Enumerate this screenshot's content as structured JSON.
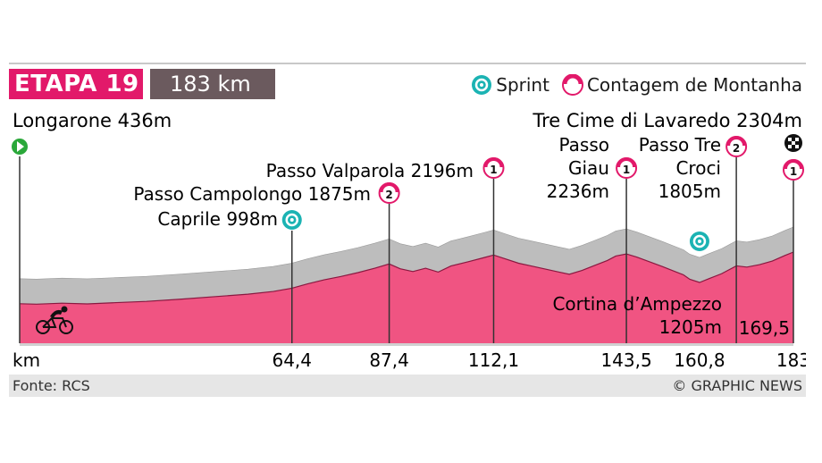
{
  "header": {
    "stage": "ETAPA 19",
    "distance": "183 km",
    "legend": [
      {
        "icon": "sprint-icon",
        "label": "Sprint"
      },
      {
        "icon": "climb-icon",
        "label": "Contagem de Montanha"
      }
    ]
  },
  "footer": {
    "source": "Fonte: RCS",
    "credit": "© GRAPHIC NEWS"
  },
  "colors": {
    "stage": "#e2196a",
    "profile": "#f05482",
    "distance": "#6b5a5e",
    "sprint": "#1bb3b3"
  },
  "chart_data": {
    "type": "area",
    "xlabel": "km",
    "xlim": [
      0,
      183
    ],
    "xticks": [
      {
        "km": 64.4,
        "label": "64,4"
      },
      {
        "km": 87.4,
        "label": "87,4"
      },
      {
        "km": 112.1,
        "label": "112,1"
      },
      {
        "km": 143.5,
        "label": "143,5"
      },
      {
        "km": 160.8,
        "label": "160,8"
      },
      {
        "km": 183,
        "label": "183"
      }
    ],
    "profile": [
      [
        0,
        436
      ],
      [
        4,
        420
      ],
      [
        10,
        455
      ],
      [
        16,
        430
      ],
      [
        22,
        470
      ],
      [
        30,
        520
      ],
      [
        38,
        600
      ],
      [
        46,
        690
      ],
      [
        54,
        780
      ],
      [
        60,
        880
      ],
      [
        64.4,
        998
      ],
      [
        68,
        1150
      ],
      [
        72,
        1300
      ],
      [
        76,
        1420
      ],
      [
        80,
        1560
      ],
      [
        84,
        1720
      ],
      [
        87.4,
        1875
      ],
      [
        90,
        1700
      ],
      [
        93,
        1600
      ],
      [
        96,
        1720
      ],
      [
        99,
        1580
      ],
      [
        102,
        1800
      ],
      [
        106,
        1950
      ],
      [
        110,
        2110
      ],
      [
        112.1,
        2196
      ],
      [
        115,
        2050
      ],
      [
        118,
        1900
      ],
      [
        121,
        1800
      ],
      [
        124,
        1700
      ],
      [
        127,
        1600
      ],
      [
        130,
        1500
      ],
      [
        133,
        1640
      ],
      [
        136,
        1820
      ],
      [
        139,
        2000
      ],
      [
        141,
        2160
      ],
      [
        143.5,
        2236
      ],
      [
        146,
        2120
      ],
      [
        149,
        1950
      ],
      [
        152,
        1780
      ],
      [
        155,
        1600
      ],
      [
        157,
        1480
      ],
      [
        158.5,
        1320
      ],
      [
        160.8,
        1205
      ],
      [
        163,
        1340
      ],
      [
        166,
        1520
      ],
      [
        169.5,
        1805
      ],
      [
        172,
        1760
      ],
      [
        175,
        1850
      ],
      [
        178,
        1980
      ],
      [
        181,
        2180
      ],
      [
        183,
        2304
      ]
    ],
    "annotations": [
      {
        "label": "Longarone 436m",
        "km": 0,
        "type": "start"
      },
      {
        "label": "Caprile 998m",
        "km": 64.4,
        "type": "sprint"
      },
      {
        "label": "Passo Campolongo 1875m",
        "km": 87.4,
        "type": "climb",
        "category": "2"
      },
      {
        "label": "Passo Valparola 2196m",
        "km": 112.1,
        "type": "climb",
        "category": "1"
      },
      {
        "label": "Passo Giau 2236m",
        "km": 143.5,
        "type": "climb",
        "category": "1"
      },
      {
        "label": "Passo Tre Croci 1805m",
        "km": 169.5,
        "type": "climb",
        "category": "2"
      },
      {
        "label": "Cortina d'Ampezzo 1205m",
        "km": 160.8,
        "type": "sprint"
      },
      {
        "label": "Tre Cime di Lavaredo 2304m",
        "km": 183,
        "type": "finish",
        "category": "1"
      },
      {
        "label": "169,5",
        "km": 169.5,
        "type": "km-marker"
      }
    ]
  },
  "labels": {
    "longarone": "Longarone 436m",
    "lavaredo": "Tre Cime di Lavaredo 2304m",
    "valparola": "Passo Valparola 2196m",
    "campolongo": "Passo Campolongo 1875m",
    "caprile": "Caprile 998m",
    "giau_1": "Passo",
    "giau_2": "Giau",
    "giau_3": "2236m",
    "trecroci_1": "Passo Tre",
    "trecroci_2": "Croci",
    "trecroci_3": "1805m",
    "cortina_1": "Cortina d’Ampezzo",
    "cortina_2": "1205m",
    "km_1695": "169,5",
    "xaxis": "km",
    "cat_campolongo": "2",
    "cat_valparola": "1",
    "cat_giau": "1",
    "cat_trecroci": "2",
    "cat_lavaredo": "1"
  }
}
